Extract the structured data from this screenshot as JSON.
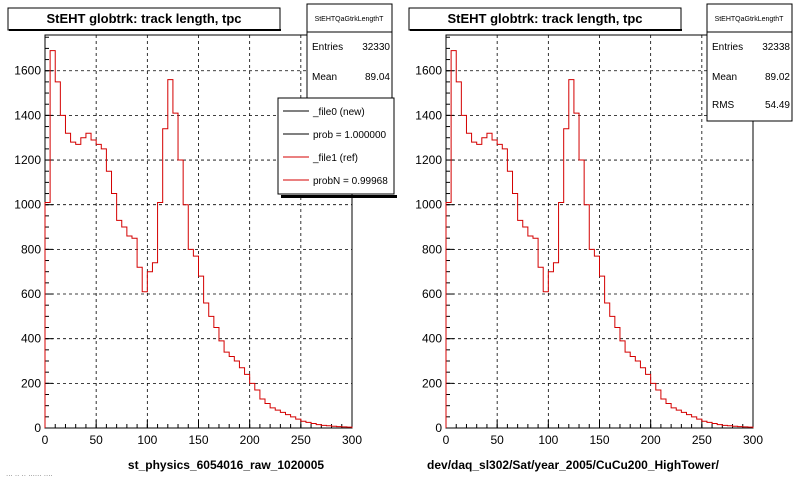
{
  "panels": [
    {
      "title": "StEHT globtrk: track length, tpc",
      "xlabel": "st_physics_6054016_raw_1020005",
      "stats": {
        "name": "StEHTQaGtrkLengthT",
        "rows": [
          {
            "label": "Entries",
            "value": "32330"
          },
          {
            "label": "Mean",
            "value": "89.04"
          }
        ]
      },
      "legend": [
        {
          "label": "_file0 (new)",
          "color": "#000000"
        },
        {
          "label": "prob = 1.000000",
          "color": "#000000"
        },
        {
          "label": "_file1 (ref)",
          "color": "#d40000"
        },
        {
          "label": "probN = 0.99968",
          "color": "#d40000"
        }
      ]
    },
    {
      "title": "StEHT globtrk: track length, tpc",
      "xlabel": "dev/daq_sl302/Sat/year_2005/CuCu200_HighTower/",
      "stats": {
        "name": "StEHTQaGtrkLengthT",
        "rows": [
          {
            "label": "Entries",
            "value": "32338"
          },
          {
            "label": "Mean",
            "value": "89.02"
          },
          {
            "label": "RMS",
            "value": "54.49"
          }
        ]
      },
      "legend": []
    }
  ],
  "footer_left": "... .. .. ...... ....",
  "chart_data": [
    {
      "type": "line",
      "title": "StEHT globtrk: track length, tpc",
      "xlabel": "st_physics_6054016_raw_1020005",
      "ylabel": "",
      "xlim": [
        0,
        300
      ],
      "ylim": [
        0,
        1760
      ],
      "xticks": [
        0,
        50,
        100,
        150,
        200,
        250,
        300
      ],
      "yticks": [
        0,
        200,
        400,
        600,
        800,
        1000,
        1200,
        1400,
        1600
      ],
      "grid": true,
      "legend_position": "top-right",
      "bin_width": 5,
      "series": [
        {
          "name": "_file1 (ref)",
          "color": "#d40000",
          "x": [
            0,
            5,
            10,
            15,
            20,
            25,
            30,
            35,
            40,
            45,
            50,
            55,
            60,
            65,
            70,
            75,
            80,
            85,
            90,
            95,
            100,
            105,
            110,
            115,
            120,
            125,
            130,
            135,
            140,
            145,
            150,
            155,
            160,
            165,
            170,
            175,
            180,
            185,
            190,
            195,
            200,
            205,
            210,
            215,
            220,
            225,
            230,
            235,
            240,
            245,
            250,
            255,
            260,
            265,
            270,
            275,
            280,
            285,
            290,
            295
          ],
          "values": [
            1010,
            1690,
            1550,
            1400,
            1320,
            1280,
            1270,
            1300,
            1320,
            1290,
            1270,
            1250,
            1150,
            1050,
            930,
            900,
            860,
            850,
            720,
            610,
            700,
            740,
            1010,
            1340,
            1560,
            1410,
            1200,
            1000,
            800,
            770,
            680,
            560,
            500,
            450,
            390,
            340,
            320,
            300,
            270,
            240,
            200,
            170,
            130,
            110,
            90,
            80,
            70,
            60,
            50,
            40,
            30,
            25,
            20,
            15,
            12,
            10,
            8,
            6,
            5,
            4
          ]
        }
      ]
    },
    {
      "type": "line",
      "title": "StEHT globtrk: track length, tpc",
      "xlabel": "dev/daq_sl302/Sat/year_2005/CuCu200_HighTower/",
      "ylabel": "",
      "xlim": [
        0,
        300
      ],
      "ylim": [
        0,
        1760
      ],
      "xticks": [
        0,
        50,
        100,
        150,
        200,
        250,
        300
      ],
      "yticks": [
        0,
        200,
        400,
        600,
        800,
        1000,
        1200,
        1400,
        1600
      ],
      "grid": true,
      "bin_width": 5,
      "series": [
        {
          "name": "",
          "color": "#d40000",
          "x": [
            0,
            5,
            10,
            15,
            20,
            25,
            30,
            35,
            40,
            45,
            50,
            55,
            60,
            65,
            70,
            75,
            80,
            85,
            90,
            95,
            100,
            105,
            110,
            115,
            120,
            125,
            130,
            135,
            140,
            145,
            150,
            155,
            160,
            165,
            170,
            175,
            180,
            185,
            190,
            195,
            200,
            205,
            210,
            215,
            220,
            225,
            230,
            235,
            240,
            245,
            250,
            255,
            260,
            265,
            270,
            275,
            280,
            285,
            290,
            295
          ],
          "values": [
            1010,
            1690,
            1550,
            1400,
            1320,
            1280,
            1270,
            1300,
            1320,
            1290,
            1270,
            1250,
            1150,
            1050,
            930,
            900,
            860,
            850,
            720,
            610,
            700,
            740,
            1010,
            1340,
            1560,
            1410,
            1200,
            1000,
            800,
            770,
            680,
            560,
            500,
            450,
            390,
            340,
            320,
            300,
            270,
            240,
            200,
            170,
            130,
            110,
            90,
            80,
            70,
            60,
            50,
            40,
            30,
            25,
            20,
            15,
            12,
            10,
            8,
            6,
            5,
            4
          ]
        }
      ]
    }
  ]
}
